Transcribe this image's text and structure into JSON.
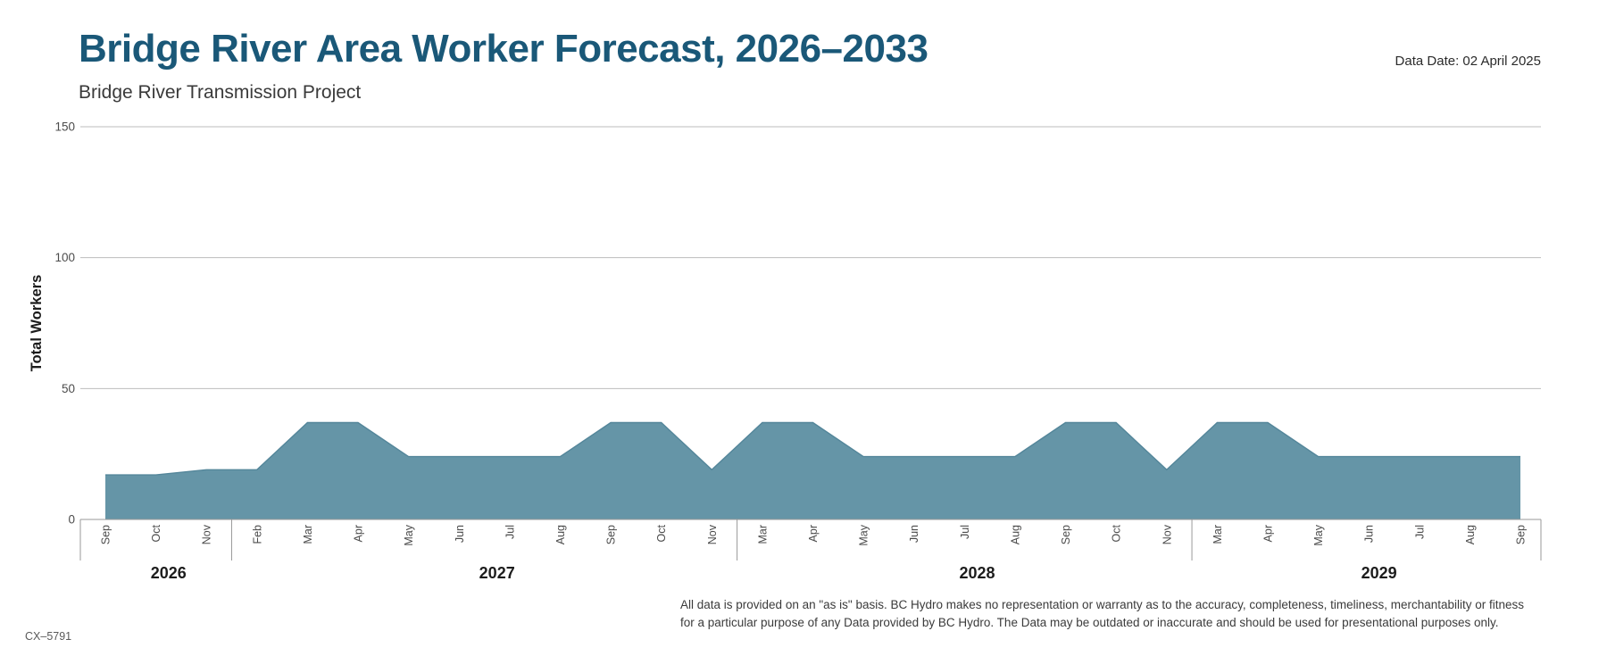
{
  "header": {
    "title": "Bridge River Area Worker Forecast, 2026–2033",
    "subtitle": "Bridge River Transmission Project",
    "data_date": "Data Date: 02 April 2025"
  },
  "chart_data": {
    "type": "area",
    "title": "Bridge River Area Worker Forecast, 2026–2033",
    "xlabel": "",
    "ylabel": "Total Workers",
    "ylim": [
      0,
      150
    ],
    "yticks": [
      0,
      50,
      100,
      150
    ],
    "grid": "horizontal",
    "legend": "none",
    "fill_color": "#6595a7",
    "edge_color": "#54869a",
    "grid_color": "#bdbdbd",
    "axis_color": "#9a9a9a",
    "years": [
      {
        "year": "2026",
        "months": [
          "Sep",
          "Oct",
          "Nov"
        ],
        "values": [
          17,
          17,
          19
        ]
      },
      {
        "year": "2027",
        "months": [
          "Feb",
          "Mar",
          "Apr",
          "May",
          "Jun",
          "Jul",
          "Aug",
          "Sep",
          "Oct",
          "Nov"
        ],
        "values": [
          19,
          37,
          37,
          24,
          24,
          24,
          24,
          37,
          37,
          19
        ]
      },
      {
        "year": "2028",
        "months": [
          "Mar",
          "Apr",
          "May",
          "Jun",
          "Jul",
          "Aug",
          "Sep",
          "Oct",
          "Nov"
        ],
        "values": [
          37,
          37,
          24,
          24,
          24,
          24,
          37,
          37,
          19
        ]
      },
      {
        "year": "2029",
        "months": [
          "Mar",
          "Apr",
          "May",
          "Jun",
          "Jul",
          "Aug",
          "Sep"
        ],
        "values": [
          37,
          37,
          24,
          24,
          24,
          24,
          24
        ]
      }
    ]
  },
  "footer": {
    "disclaimer_line1": "All data is provided on an \"as is\" basis. BC Hydro makes no representation or warranty as to the accuracy, completeness, timeliness, merchantability or fitness",
    "disclaimer_line2": "for a particular purpose of any Data provided by BC Hydro. The Data may be outdated or inaccurate and should be used for presentational purposes only.",
    "reference": "CX–5791"
  }
}
